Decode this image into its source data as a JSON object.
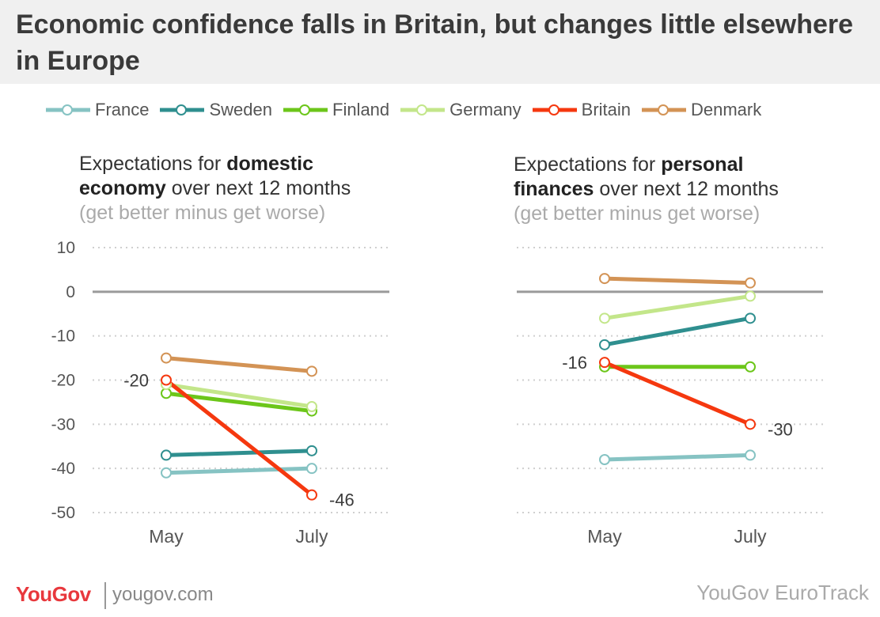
{
  "title": "Economic confidence falls in Britain, but changes little elsewhere in Europe",
  "legend": [
    {
      "name": "France",
      "color": "#86c3c3"
    },
    {
      "name": "Sweden",
      "color": "#2f8f8f"
    },
    {
      "name": "Finland",
      "color": "#6cc61a"
    },
    {
      "name": "Germany",
      "color": "#c3e68a"
    },
    {
      "name": "Britain",
      "color": "#f5380f"
    },
    {
      "name": "Denmark",
      "color": "#d39355"
    }
  ],
  "panels": [
    {
      "line1_pre": "Expectations for ",
      "line1_bold": "domestic",
      "line2_bold": "economy",
      "line2_post": " over next 12 months",
      "sub": "(get better minus get worse)"
    },
    {
      "line1_pre": "Expectations for ",
      "line1_bold": "personal",
      "line2_bold": "finances",
      "line2_post": " over next 12 months",
      "sub": "(get better minus get worse)"
    }
  ],
  "chart_data": [
    {
      "type": "line",
      "title": "Expectations for domestic economy over next 12 months (get better minus get worse)",
      "categories": [
        "May",
        "July"
      ],
      "ylim": [
        -50,
        10
      ],
      "yticks": [
        "10",
        "0",
        "-10",
        "-20",
        "-30",
        "-40",
        "-50"
      ],
      "series": [
        {
          "name": "France",
          "color": "#86c3c3",
          "values": [
            -41,
            -40
          ]
        },
        {
          "name": "Sweden",
          "color": "#2f8f8f",
          "values": [
            -37,
            -36
          ]
        },
        {
          "name": "Finland",
          "color": "#6cc61a",
          "values": [
            -23,
            -27
          ]
        },
        {
          "name": "Germany",
          "color": "#c3e68a",
          "values": [
            -21,
            -26
          ]
        },
        {
          "name": "Denmark",
          "color": "#d39355",
          "values": [
            -15,
            -18
          ]
        },
        {
          "name": "Britain",
          "color": "#f5380f",
          "values": [
            -20,
            -46
          ]
        }
      ],
      "annotations": [
        {
          "text": "-20",
          "series": "Britain",
          "point": 0,
          "side": "left"
        },
        {
          "text": "-46",
          "series": "Britain",
          "point": 1,
          "side": "right"
        }
      ]
    },
    {
      "type": "line",
      "title": "Expectations for personal finances over next 12 months (get better minus get worse)",
      "categories": [
        "May",
        "July"
      ],
      "ylim": [
        -50,
        10
      ],
      "yticks": [],
      "series": [
        {
          "name": "France",
          "color": "#86c3c3",
          "values": [
            -38,
            -37
          ]
        },
        {
          "name": "Finland",
          "color": "#6cc61a",
          "values": [
            -17,
            -17
          ]
        },
        {
          "name": "Sweden",
          "color": "#2f8f8f",
          "values": [
            -12,
            -6
          ]
        },
        {
          "name": "Germany",
          "color": "#c3e68a",
          "values": [
            -6,
            -1
          ]
        },
        {
          "name": "Denmark",
          "color": "#d39355",
          "values": [
            3,
            2
          ]
        },
        {
          "name": "Britain",
          "color": "#f5380f",
          "values": [
            -16,
            -30
          ]
        }
      ],
      "annotations": [
        {
          "text": "-16",
          "series": "Britain",
          "point": 0,
          "side": "left"
        },
        {
          "text": "-30",
          "series": "Britain",
          "point": 1,
          "side": "right"
        }
      ]
    }
  ],
  "footer": {
    "logo": "YouGov",
    "url": "yougov.com",
    "source": "YouGov EuroTrack"
  }
}
